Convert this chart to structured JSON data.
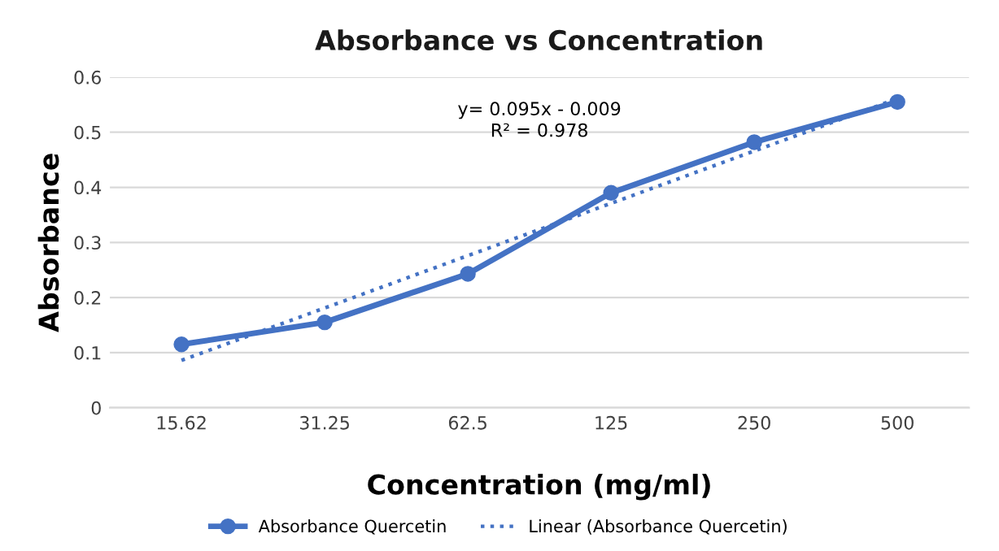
{
  "chart_data": {
    "type": "line",
    "title": "Absorbance vs Concentration",
    "xlabel": "Concentration (mg/ml)",
    "ylabel": "Absorbance",
    "categories": [
      "15.62",
      "31.25",
      "62.5",
      "125",
      "250",
      "500"
    ],
    "series": [
      {
        "name": "Absorbance Quercetin",
        "color": "#4472c4",
        "values": [
          0.115,
          0.155,
          0.243,
          0.39,
          0.482,
          0.555
        ],
        "marker": "circle",
        "line_style": "solid"
      },
      {
        "name": "Linear (Absorbance Quercetin)",
        "color": "#4472c4",
        "values": [
          0.086,
          0.181,
          0.276,
          0.371,
          0.466,
          0.561
        ],
        "marker": "none",
        "line_style": "dotted"
      }
    ],
    "annotations": [
      "y= 0.095x - 0.009",
      "R² = 0.978"
    ],
    "ylim": [
      0,
      0.6
    ],
    "yticks": [
      0,
      0.1,
      0.2,
      0.3,
      0.4,
      0.5,
      0.6
    ],
    "grid": "y",
    "legend": "bottom"
  }
}
